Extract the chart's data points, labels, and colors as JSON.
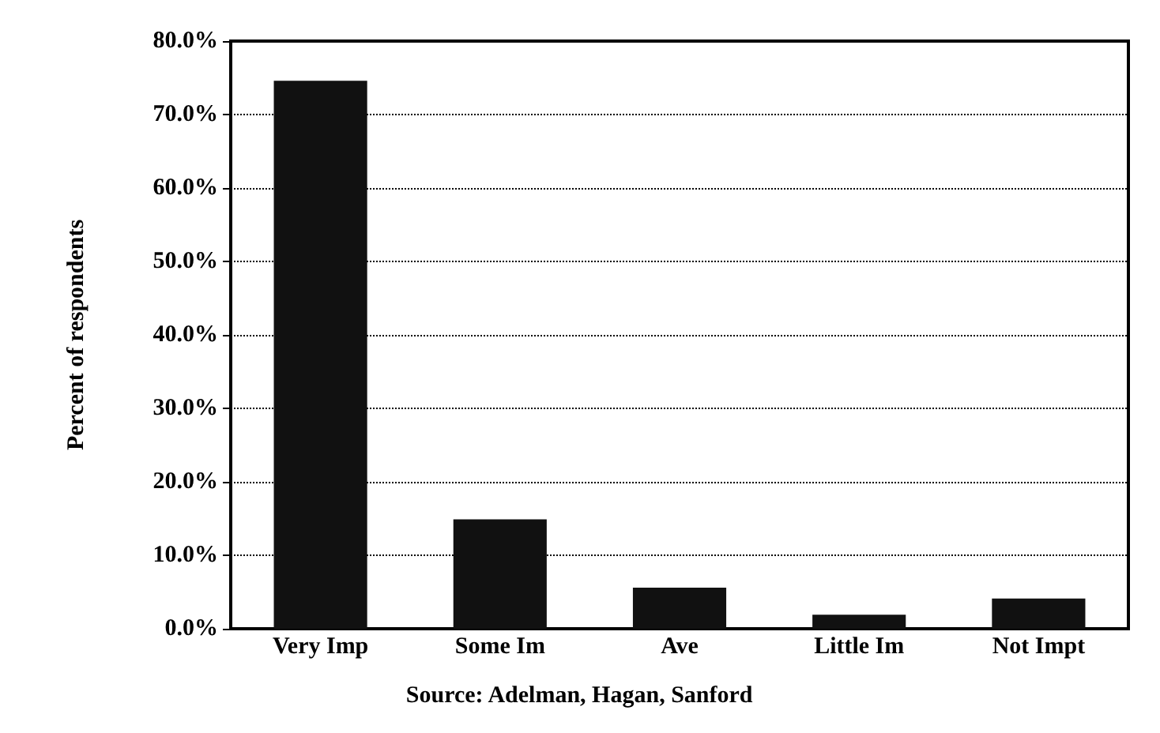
{
  "chart_data": {
    "type": "bar",
    "ylabel": "Percent of respondents",
    "categories": [
      "Very Imp",
      "Some Im",
      "Ave",
      "Little Im",
      "Not Impt"
    ],
    "values": [
      74.6,
      14.9,
      5.6,
      1.9,
      4.1
    ],
    "color": "#111111",
    "ylim": [
      0,
      80
    ],
    "yticks": [
      {
        "value": 0,
        "label": "0.0%"
      },
      {
        "value": 10,
        "label": "10.0%"
      },
      {
        "value": 20,
        "label": "20.0%"
      },
      {
        "value": 30,
        "label": "30.0%"
      },
      {
        "value": 40,
        "label": "40.0%"
      },
      {
        "value": 50,
        "label": "50.0%"
      },
      {
        "value": 60,
        "label": "60.0%"
      },
      {
        "value": 70,
        "label": "70.0%"
      },
      {
        "value": 80,
        "label": "80.0%"
      }
    ],
    "grid": "y",
    "annotations": [
      "Source: Adelman, Hagan, Sanford"
    ]
  }
}
